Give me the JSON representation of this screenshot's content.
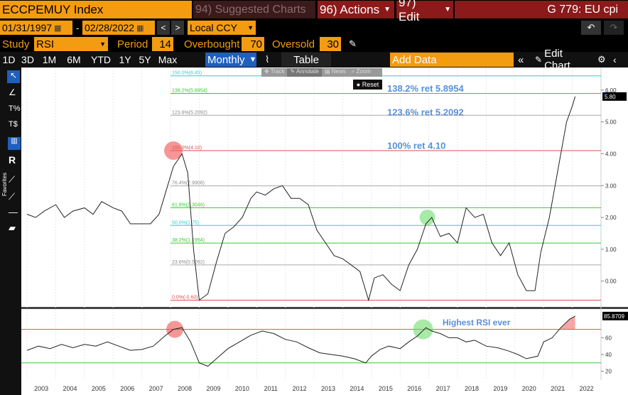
{
  "header": {
    "ticker": "ECCPEMUY Index",
    "suggested": "94) Suggested Charts",
    "actions": "96) Actions",
    "edit": "97) Edit",
    "title": "G 779: EU cpi"
  },
  "dates": {
    "start": "01/31/1997",
    "end": "02/28/2022",
    "currency": "Local CCY",
    "sep": "-"
  },
  "study": {
    "label": "Study",
    "value": "RSI",
    "period_label": "Period",
    "period": "14",
    "overbought_label": "Overbought",
    "overbought": "70",
    "oversold_label": "Oversold",
    "oversold": "30"
  },
  "ranges": [
    "1D",
    "3D",
    "1M",
    "6M",
    "YTD",
    "1Y",
    "5Y",
    "Max"
  ],
  "frequency": "Monthly",
  "table_label": "Table",
  "add_data": "Add Data",
  "edit_chart": "Edit Chart",
  "toolbar": {
    "favorites": "Favorites",
    "track": "Track",
    "annotate": "Annotate",
    "news": "News",
    "zoom": "Zoom",
    "reset": "Reset"
  },
  "colors": {
    "orange": "#f39c12",
    "blue_accent": "#1f5fbf",
    "annotation_text": "#5b8fd6",
    "line": "#222222",
    "fib_red": "#d9534f",
    "fib_green": "#33cc33",
    "fib_cyan": "#33cccc",
    "fib_gray": "#aaaaaa"
  },
  "chart_data": [
    {
      "type": "line",
      "name": "price",
      "x": [
        2003.0,
        2003.3,
        2003.6,
        2004.0,
        2004.3,
        2004.6,
        2005.0,
        2005.3,
        2005.6,
        2006.0,
        2006.3,
        2006.6,
        2007.0,
        2007.3,
        2007.6,
        2007.9,
        2008.1,
        2008.4,
        2008.6,
        2008.8,
        2009.0,
        2009.3,
        2009.6,
        2009.9,
        2010.2,
        2010.5,
        2010.8,
        2011.0,
        2011.3,
        2011.6,
        2011.9,
        2012.2,
        2012.5,
        2012.8,
        2013.1,
        2013.4,
        2013.7,
        2014.0,
        2014.3,
        2014.6,
        2014.9,
        2015.1,
        2015.4,
        2015.7,
        2016.0,
        2016.3,
        2016.6,
        2016.9,
        2017.1,
        2017.4,
        2017.7,
        2018.0,
        2018.3,
        2018.6,
        2018.9,
        2019.2,
        2019.5,
        2019.8,
        2020.1,
        2020.4,
        2020.7,
        2020.9,
        2021.2,
        2021.5,
        2021.8,
        2022.0,
        2022.1
      ],
      "y": [
        2.1,
        2.0,
        2.2,
        2.4,
        2.0,
        2.2,
        2.3,
        2.1,
        2.5,
        2.3,
        2.2,
        1.8,
        1.8,
        1.8,
        2.1,
        3.0,
        3.6,
        4.0,
        3.4,
        1.0,
        -0.6,
        -0.4,
        0.6,
        1.5,
        1.7,
        2.0,
        2.6,
        2.8,
        2.7,
        2.9,
        3.0,
        2.6,
        2.6,
        2.4,
        1.6,
        1.2,
        0.8,
        0.7,
        0.5,
        0.3,
        -0.6,
        0.1,
        0.2,
        -0.1,
        -0.3,
        0.5,
        1.0,
        1.8,
        2.0,
        1.4,
        1.5,
        1.2,
        2.3,
        2.0,
        2.1,
        1.2,
        0.8,
        1.2,
        0.2,
        -0.3,
        -0.3,
        0.9,
        2.0,
        3.5,
        5.0,
        5.5,
        5.8
      ],
      "ylim": [
        -0.7,
        6.6
      ],
      "yticks": [
        "0.00",
        "1.00",
        "2.00",
        "3.00",
        "4.00",
        "5.00",
        "6.00"
      ],
      "last_value": "5.80",
      "fib_levels": [
        {
          "label": "150.0%(6.45)",
          "value": 6.45,
          "color": "cyan"
        },
        {
          "label": "138.2%(5.8954)",
          "value": 5.8954,
          "color": "green"
        },
        {
          "label": "123.6%(5.2092)",
          "value": 5.2092,
          "color": "gray"
        },
        {
          "label": "100.0%(4.10)",
          "value": 4.1,
          "color": "red"
        },
        {
          "label": "76.4%(2.9908)",
          "value": 2.9908,
          "color": "gray"
        },
        {
          "label": "61.8%(2.3046)",
          "value": 2.3046,
          "color": "green"
        },
        {
          "label": "50.0%(1.75)",
          "value": 1.75,
          "color": "cyan"
        },
        {
          "label": "38.2%(1.1954)",
          "value": 1.1954,
          "color": "green"
        },
        {
          "label": "23.6%(0.5092)",
          "value": 0.5092,
          "color": "gray"
        },
        {
          "label": "0.0%(-0.60)",
          "value": -0.6,
          "color": "red"
        }
      ],
      "annotations": [
        "138.2% ret 5.8954",
        "123.6% ret 5.2092",
        "100% ret 4.10"
      ]
    },
    {
      "type": "line",
      "name": "RSI",
      "x": [
        2003.0,
        2003.4,
        2003.8,
        2004.2,
        2004.6,
        2005.0,
        2005.4,
        2005.8,
        2006.2,
        2006.6,
        2007.0,
        2007.4,
        2007.8,
        2008.1,
        2008.4,
        2008.7,
        2009.0,
        2009.3,
        2009.6,
        2010.0,
        2010.4,
        2010.8,
        2011.2,
        2011.6,
        2012.0,
        2012.4,
        2012.8,
        2013.2,
        2013.6,
        2014.0,
        2014.4,
        2014.8,
        2015.0,
        2015.3,
        2015.6,
        2016.0,
        2016.3,
        2016.6,
        2016.9,
        2017.1,
        2017.4,
        2017.7,
        2018.0,
        2018.3,
        2018.6,
        2019.0,
        2019.4,
        2019.8,
        2020.1,
        2020.4,
        2020.8,
        2021.0,
        2021.3,
        2021.6,
        2021.9,
        2022.1
      ],
      "y": [
        45,
        50,
        47,
        52,
        48,
        52,
        50,
        55,
        50,
        45,
        46,
        50,
        62,
        70,
        72,
        55,
        30,
        26,
        35,
        47,
        55,
        63,
        68,
        65,
        58,
        55,
        48,
        42,
        40,
        38,
        35,
        30,
        38,
        46,
        50,
        47,
        55,
        62,
        72,
        68,
        65,
        60,
        60,
        55,
        57,
        50,
        48,
        44,
        40,
        35,
        38,
        55,
        60,
        72,
        82,
        85.87
      ],
      "ylim": [
        12,
        90
      ],
      "yticks": [
        "20",
        "40",
        "60"
      ],
      "last_value": "85.8709",
      "overbought": 70,
      "oversold": 30,
      "annotations": [
        "Highest RSI ever"
      ]
    }
  ],
  "x_axis_labels": [
    "2003",
    "2004",
    "2005",
    "2006",
    "2007",
    "2008",
    "2009",
    "2010",
    "2011",
    "2012",
    "2013",
    "2014",
    "2015",
    "2016",
    "2017",
    "2018",
    "2019",
    "2020",
    "2021",
    "2022"
  ]
}
